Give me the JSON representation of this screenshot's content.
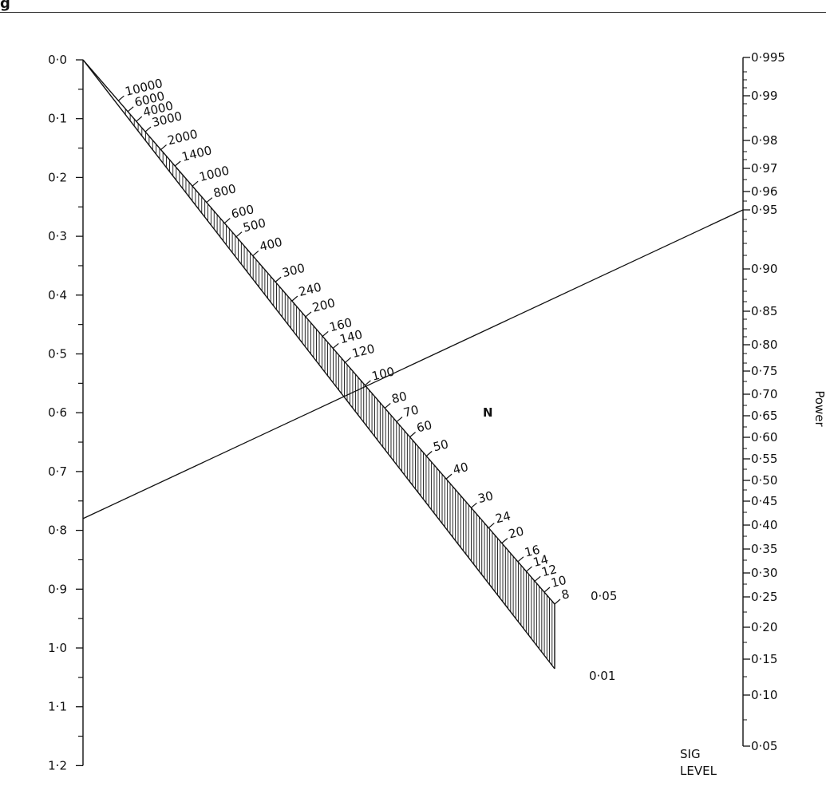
{
  "header": {
    "glyph": "g"
  },
  "left_axis": {
    "ticks": [
      "0·0",
      "0·1",
      "0·2",
      "0·3",
      "0·4",
      "0·5",
      "0·6",
      "0·7",
      "0·8",
      "0·9",
      "1·0",
      "1·1",
      "1·2"
    ],
    "values": [
      0.0,
      0.1,
      0.2,
      0.3,
      0.4,
      0.5,
      0.6,
      0.7,
      0.8,
      0.9,
      1.0,
      1.1,
      1.2
    ]
  },
  "right_axis": {
    "label": "Power",
    "ticks": [
      {
        "v": "0·995",
        "t": "0·995"
      },
      {
        "v": "0·99",
        "t": "0·99"
      },
      {
        "v": "0·98",
        "t": "0·98"
      },
      {
        "v": "0·97",
        "t": "0·97"
      },
      {
        "v": "0·96",
        "t": "0·96"
      },
      {
        "v": "0·95",
        "t": "0·95"
      },
      {
        "v": "0·90",
        "t": "0·90"
      },
      {
        "v": "0·85",
        "t": "0·85"
      },
      {
        "v": "0·80",
        "t": "0·80"
      },
      {
        "v": "0·75",
        "t": "0·75"
      },
      {
        "v": "0·70",
        "t": "0·70"
      },
      {
        "v": "0·65",
        "t": "0·65"
      },
      {
        "v": "0·60",
        "t": "0·60"
      },
      {
        "v": "0·55",
        "t": "0·55"
      },
      {
        "v": "0·50",
        "t": "0·50"
      },
      {
        "v": "0·45",
        "t": "0·45"
      },
      {
        "v": "0·40",
        "t": "0·40"
      },
      {
        "v": "0·35",
        "t": "0·35"
      },
      {
        "v": "0·30",
        "t": "0·30"
      },
      {
        "v": "0·25",
        "t": "0·25"
      },
      {
        "v": "0·20",
        "t": "0·20"
      },
      {
        "v": "0·15",
        "t": "0·15"
      },
      {
        "v": "0·10",
        "t": "0·10"
      },
      {
        "v": "0·05",
        "t": "0·05"
      }
    ]
  },
  "n_scale": {
    "label": "N",
    "values": [
      "10000",
      "6000",
      "4000",
      "3000",
      "2000",
      "1400",
      "1000",
      "800",
      "600",
      "500",
      "400",
      "300",
      "240",
      "200",
      "160",
      "140",
      "120",
      "100",
      "80",
      "70",
      "60",
      "50",
      "40",
      "30",
      "24",
      "20",
      "16",
      "14",
      "12",
      "10",
      "8"
    ]
  },
  "sig_level": {
    "label_line1": "SIG",
    "label_line2": "LEVEL",
    "levels": [
      "0·05",
      "0·01"
    ]
  },
  "example_line": {
    "from_standardized": 0.78,
    "to_power": "0·95"
  }
}
